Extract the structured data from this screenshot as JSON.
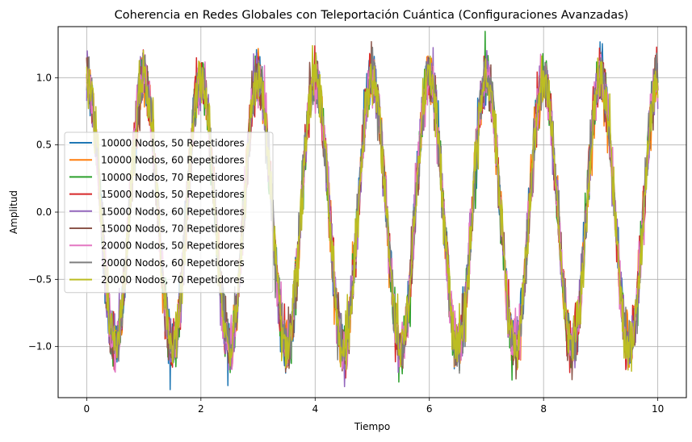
{
  "chart_data": {
    "type": "line",
    "title": "Coherencia en Redes Globales con Teleportación Cuántica (Configuraciones Avanzadas)",
    "xlabel": "Tiempo",
    "ylabel": "Amplitud",
    "xlim": [
      -0.5,
      10.5
    ],
    "ylim": [
      -1.38,
      1.38
    ],
    "x_ticks": [
      0,
      2,
      4,
      6,
      8,
      10
    ],
    "x_tick_labels": [
      "0",
      "2",
      "4",
      "6",
      "8",
      "10"
    ],
    "y_ticks": [
      -1.0,
      -0.5,
      0.0,
      0.5,
      1.0
    ],
    "y_tick_labels": [
      "−1.0",
      "−0.5",
      "0.0",
      "0.5",
      "1.0"
    ],
    "grid": true,
    "legend_position": "center-left",
    "signal": {
      "function": "cos",
      "frequency": 1,
      "amplitude": 1,
      "noise": 0.1,
      "x_start": 0,
      "x_end": 10,
      "num_points": 1000
    },
    "series": [
      {
        "name": "10000 Nodos, 50 Repetidores",
        "color": "#1f77b4"
      },
      {
        "name": "10000 Nodos, 60 Repetidores",
        "color": "#ff7f0e"
      },
      {
        "name": "10000 Nodos, 70 Repetidores",
        "color": "#2ca02c"
      },
      {
        "name": "15000 Nodos, 50 Repetidores",
        "color": "#d62728"
      },
      {
        "name": "15000 Nodos, 60 Repetidores",
        "color": "#9467bd"
      },
      {
        "name": "15000 Nodos, 70 Repetidores",
        "color": "#8c564b"
      },
      {
        "name": "20000 Nodos, 50 Repetidores",
        "color": "#e377c2"
      },
      {
        "name": "20000 Nodos, 60 Repetidores",
        "color": "#7f7f7f"
      },
      {
        "name": "20000 Nodos, 70 Repetidores",
        "color": "#bcbd22"
      }
    ]
  }
}
